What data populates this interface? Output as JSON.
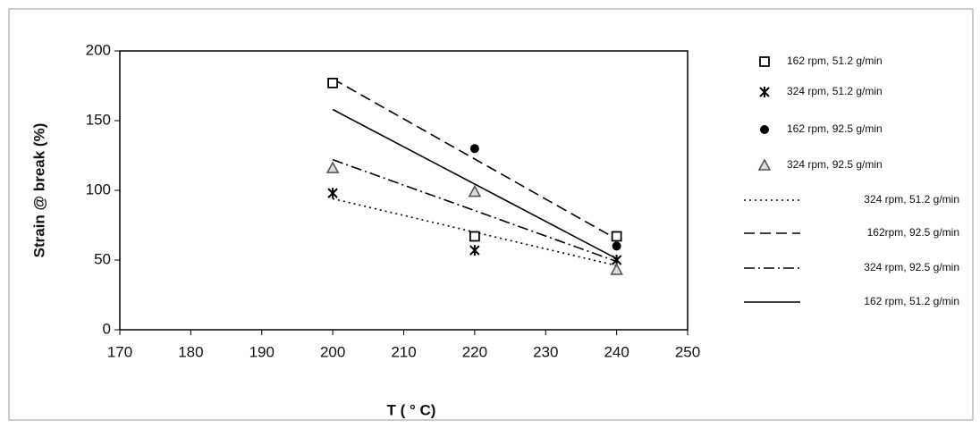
{
  "chart_data": {
    "type": "scatter",
    "x_label": "T ( ° C)",
    "y_label": "Strain @ break (%)",
    "xlim": [
      170,
      250
    ],
    "xticks": [
      170,
      180,
      190,
      200,
      210,
      220,
      230,
      240,
      250
    ],
    "ylim": [
      0,
      200
    ],
    "yticks": [
      0,
      50,
      100,
      150,
      200
    ],
    "grid": false,
    "legend": "right",
    "series": [
      {
        "name": "162 rpm, 51.2 g/min",
        "color": "#000000",
        "marker": "square",
        "x": [
          200,
          220,
          240
        ],
        "values": [
          177,
          67,
          67
        ]
      },
      {
        "name": "324 rpm, 51.2 g/min",
        "color": "#000000",
        "marker": "asterisk",
        "x": [
          200,
          220,
          240
        ],
        "values": [
          98,
          57,
          50
        ]
      },
      {
        "name": "162 rpm, 92.5 g/min",
        "color": "#000000",
        "marker": "circle",
        "x": [
          220,
          240
        ],
        "values": [
          130,
          60
        ]
      },
      {
        "name": "324 rpm, 92.5 g/min",
        "color": "#555555",
        "marker": "triangle",
        "x": [
          200,
          220,
          240
        ],
        "values": [
          116,
          99,
          43
        ]
      },
      {
        "name": "324 rpm, 51.2 g/min",
        "color": "#000000",
        "line": "dotted",
        "x": [
          200,
          240
        ],
        "values": [
          94,
          46
        ]
      },
      {
        "name": "162rpm, 92.5 g/min",
        "color": "#000000",
        "line": "dashed",
        "x": [
          200,
          240
        ],
        "values": [
          180,
          65
        ]
      },
      {
        "name": "324 rpm, 92.5 g/min",
        "color": "#000000",
        "line": "dashdot",
        "x": [
          200,
          240
        ],
        "values": [
          122,
          49
        ]
      },
      {
        "name": "162 rpm, 51.2 g/min",
        "color": "#000000",
        "line": "solid",
        "x": [
          200,
          240
        ],
        "values": [
          158,
          51
        ]
      }
    ]
  }
}
